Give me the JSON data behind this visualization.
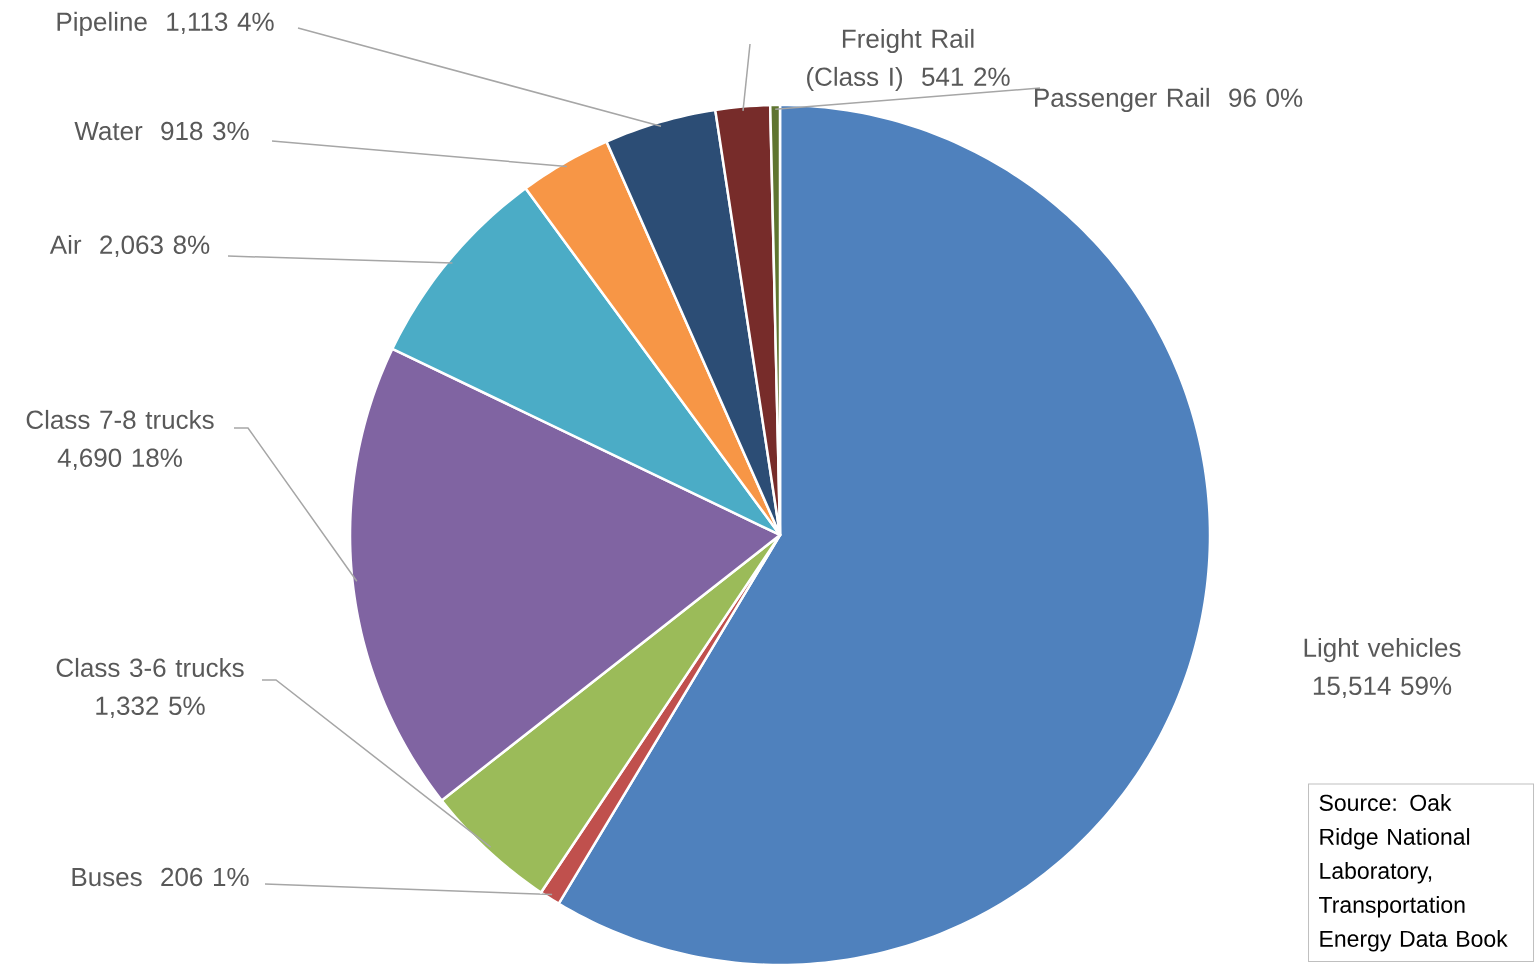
{
  "chart_data": {
    "type": "pie",
    "categories": [
      "Light vehicles",
      "Buses",
      "Class 3-6 trucks",
      "Class 7-8 trucks",
      "Air",
      "Water",
      "Pipeline",
      "Freight Rail (Class I)",
      "Passenger Rail"
    ],
    "values": [
      15514,
      206,
      1332,
      4690,
      2063,
      918,
      1113,
      541,
      96
    ],
    "value_labels": [
      "15,514 59%",
      "206 1%",
      "1,332 5%",
      "4,690 18%",
      "2,063 8%",
      "918 3%",
      "1,113 4%",
      "541 2%",
      "96 0%"
    ],
    "colors": [
      "#4f81bd",
      "#c0504d",
      "#9bbb59",
      "#8064a2",
      "#4bacc6",
      "#f79646",
      "#2c4d75",
      "#772c2a",
      "#5f7530"
    ],
    "annotations": [
      "Source: Oak Ridge National Laboratory, Transportation Energy Data Book"
    ]
  }
}
